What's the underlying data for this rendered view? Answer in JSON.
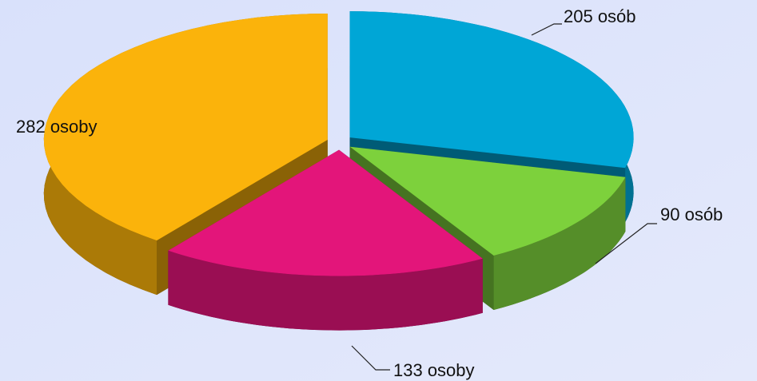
{
  "chart_data": {
    "type": "pie3d",
    "categories": [
      null,
      null,
      null,
      null
    ],
    "values": [
      205,
      90,
      133,
      282
    ],
    "value_labels": [
      "205 osób",
      "90 osób",
      "133 osoby",
      "282 osoby"
    ],
    "colors": [
      "#00a6d6",
      "#7dd13c",
      "#e3157a",
      "#fbb30b"
    ]
  }
}
